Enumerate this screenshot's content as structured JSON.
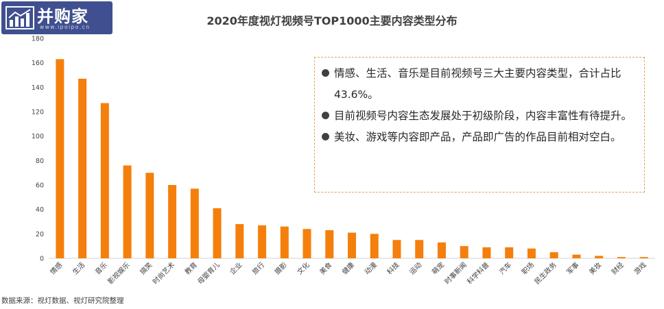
{
  "logo": {
    "text": "并购家",
    "url": "www.ipoipo.cn"
  },
  "notes": [
    "情感、生活、音乐是目前视频号三大主要内容类型，合计占比43.6%。",
    "目前视频号内容生态发展处于初级阶段，内容丰富性有待提升。",
    "美妆、游戏等内容即产品，产品即广告的作品目前相对空白。"
  ],
  "source": "数据来源：视灯数据、视灯研究院整理",
  "colors": {
    "bar": "#f57f0c",
    "box_border": "#e6a24f",
    "logo_bg": "#3f4f8f",
    "text": "#404040"
  },
  "chart_data": {
    "type": "bar",
    "title": "2020年度视灯视频号TOP1000主要内容类型分布",
    "categories": [
      "情感",
      "生活",
      "音乐",
      "影视娱乐",
      "搞笑",
      "时尚艺术",
      "教育",
      "母婴育儿",
      "企业",
      "旅行",
      "摄影",
      "文化",
      "美食",
      "健康",
      "动漫",
      "科技",
      "运动",
      "萌宠",
      "时事新闻",
      "科学科普",
      "汽车",
      "职场",
      "民生政务",
      "军事",
      "美妆",
      "财经",
      "游戏"
    ],
    "values": [
      163,
      147,
      127,
      76,
      70,
      60,
      57,
      41,
      28,
      27,
      26,
      24,
      23,
      21,
      20,
      15,
      15,
      13,
      10,
      9,
      9,
      8,
      5,
      3,
      2,
      1,
      1
    ],
    "ylim": [
      0,
      180
    ],
    "yticks": [
      0,
      20,
      40,
      60,
      80,
      100,
      120,
      140,
      160,
      180
    ],
    "grid": false,
    "legend": "none"
  }
}
